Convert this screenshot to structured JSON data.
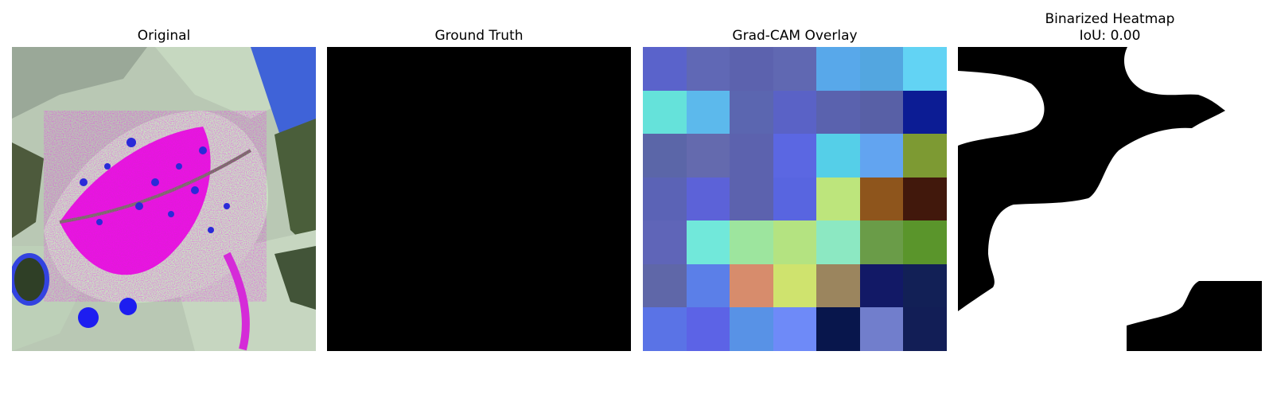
{
  "panels": [
    {
      "id": "original",
      "title": "Original"
    },
    {
      "id": "ground_truth",
      "title": "Ground Truth"
    },
    {
      "id": "gradcam",
      "title": "Grad-CAM Overlay"
    },
    {
      "id": "binarized",
      "title": "Binarized Heatmap",
      "subtitle": "IoU: 0.00"
    }
  ],
  "gradcam_grid": {
    "rows": 7,
    "cols": 7,
    "colors": [
      [
        "#5a63cb",
        "#6068b5",
        "#5c62ae",
        "#6068b2",
        "#58a8ea",
        "#53a6e0",
        "#62d3f4"
      ],
      [
        "#65e2da",
        "#5cb9ec",
        "#5b66b0",
        "#5a62c6",
        "#5a62ae",
        "#5860a6",
        "#0c1c94"
      ],
      [
        "#5b66a8",
        "#646aae",
        "#5c62ae",
        "#5b67e2",
        "#55cfe8",
        "#62a4f0",
        "#7d9a33"
      ],
      [
        "#5b63b6",
        "#5c62d8",
        "#5c62ae",
        "#5865e0",
        "#bde57c",
        "#8e551c",
        "#41180c"
      ],
      [
        "#5f65b8",
        "#71e8da",
        "#9de59e",
        "#b4e381",
        "#8ce8c2",
        "#6a9c48",
        "#5a952b"
      ],
      [
        "#5f67a8",
        "#5b7fe8",
        "#d78c6c",
        "#cfe36e",
        "#9b855e",
        "#121966",
        "#122056"
      ],
      [
        "#5a73e6",
        "#5c63e6",
        "#5892e6",
        "#6e8af8",
        "#08164c",
        "#717ecc",
        "#121e56"
      ]
    ]
  }
}
